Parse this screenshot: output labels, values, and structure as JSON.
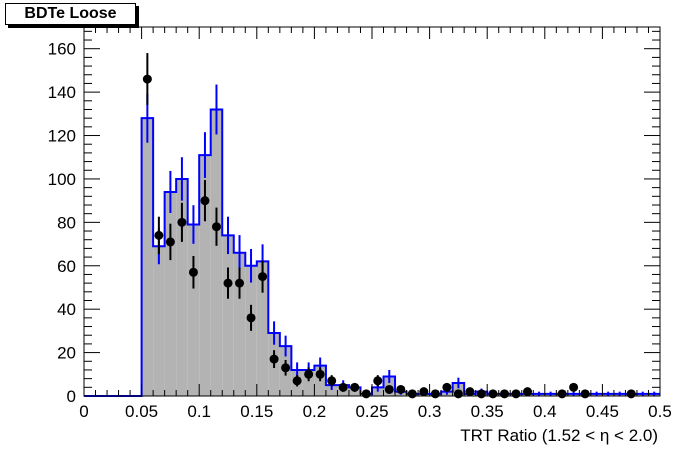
{
  "chart_data": {
    "type": "histogram",
    "title": "BDTe Loose",
    "xlabel": "TRT Ratio (1.52 <  η < 2.0)",
    "ylabel": "",
    "xlim": [
      0,
      0.5
    ],
    "ylim": [
      0,
      170
    ],
    "xticks": [
      "0",
      "0.05",
      "0.1",
      "0.15",
      "0.2",
      "0.25",
      "0.3",
      "0.35",
      "0.4",
      "0.45",
      "0.5"
    ],
    "yticks": [
      "0",
      "20",
      "40",
      "60",
      "80",
      "100",
      "120",
      "140",
      "160"
    ],
    "bin_width": 0.01,
    "x_min": 0.0,
    "histogram": {
      "fill_color": "#b3b3b3",
      "line_color": "#0000ff",
      "values": [
        0,
        0,
        0,
        0,
        0,
        128,
        69,
        94,
        100,
        79,
        111,
        132,
        74,
        66,
        60,
        62,
        29,
        23,
        12,
        12,
        14,
        5,
        5,
        4,
        1,
        4,
        9,
        2,
        1,
        1,
        1,
        2,
        6,
        1,
        2,
        1,
        1,
        1,
        1,
        1,
        1,
        1,
        1,
        1,
        1,
        1,
        1,
        1,
        1,
        1
      ],
      "error_bins": [
        12,
        19
      ]
    },
    "data_points": {
      "color": "#000000",
      "x": [
        0.055,
        0.065,
        0.075,
        0.085,
        0.095,
        0.105,
        0.115,
        0.125,
        0.135,
        0.145,
        0.155,
        0.165,
        0.175,
        0.185,
        0.195,
        0.205,
        0.215,
        0.225,
        0.235,
        0.245,
        0.255,
        0.265,
        0.275,
        0.285,
        0.295,
        0.305,
        0.315,
        0.325,
        0.335,
        0.345,
        0.355,
        0.365,
        0.375,
        0.385,
        0.415,
        0.425,
        0.435,
        0.475
      ],
      "y": [
        146,
        74,
        71,
        80,
        57,
        90,
        78,
        52,
        52,
        36,
        55,
        17,
        13,
        7,
        10,
        10,
        7,
        4,
        4,
        1,
        7,
        3,
        3,
        1,
        2,
        1,
        4,
        1,
        2,
        1,
        1,
        1,
        1,
        2,
        1,
        4,
        1,
        1
      ],
      "err": [
        12,
        8.6,
        8.4,
        9,
        7.5,
        9.5,
        8.8,
        7.2,
        7.2,
        6,
        7.4,
        4.1,
        3.6,
        2.6,
        3.2,
        3.2,
        2.6,
        2,
        2,
        1,
        2.6,
        1.7,
        1.7,
        1,
        1.4,
        1,
        2,
        1,
        1.4,
        1,
        1,
        1,
        1,
        1.4,
        1,
        2,
        1,
        1
      ]
    },
    "grid": false,
    "legend": "none"
  }
}
